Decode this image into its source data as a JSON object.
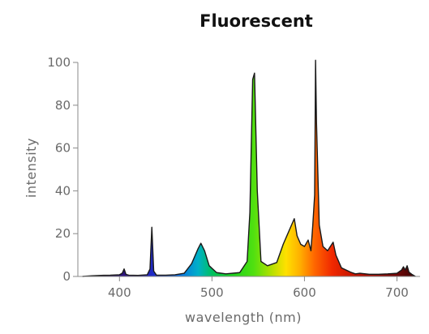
{
  "chart_data": {
    "type": "area",
    "title": "Fluorescent",
    "xlabel": "wavelength (nm)",
    "ylabel": "intensity",
    "xlim": [
      355,
      725
    ],
    "ylim": [
      0,
      100
    ],
    "xticks": [
      400,
      500,
      600,
      700
    ],
    "yticks": [
      0,
      20,
      40,
      60,
      80,
      100
    ],
    "grid": false,
    "fill": "visible-spectrum-gradient",
    "series": [
      {
        "x": [
          360,
          370,
          380,
          390,
          400,
          403,
          405,
          407,
          410,
          420,
          430,
          433,
          435,
          437,
          440,
          450,
          460,
          470,
          478,
          485,
          488,
          492,
          497,
          505,
          515,
          530,
          538,
          541,
          544,
          546,
          549,
          553,
          560,
          570,
          577,
          582,
          586,
          589,
          592,
          596,
          600,
          604,
          607,
          609,
          611,
          612,
          613,
          616,
          620,
          625,
          628,
          631,
          634,
          640,
          650,
          655,
          660,
          670,
          680,
          690,
          700,
          705,
          707,
          709,
          711,
          713,
          716,
          720
        ],
        "y": [
          0,
          0.3,
          0.5,
          0.6,
          0.8,
          1.5,
          3.5,
          1.0,
          0.6,
          0.5,
          0.8,
          3.5,
          23,
          2.5,
          0.6,
          0.6,
          0.8,
          1.5,
          6,
          13,
          15.5,
          12,
          5,
          1.8,
          1.2,
          1.8,
          7,
          30,
          92,
          95,
          40,
          7,
          5,
          6.5,
          15,
          20,
          24,
          27,
          19,
          15,
          14,
          17,
          12,
          24,
          38,
          101,
          72,
          24,
          14,
          12,
          14,
          16,
          10,
          4,
          2,
          1.2,
          1.5,
          1.0,
          1.0,
          1.2,
          1.5,
          3,
          4.5,
          3,
          5,
          2,
          1,
          0
        ]
      }
    ]
  }
}
